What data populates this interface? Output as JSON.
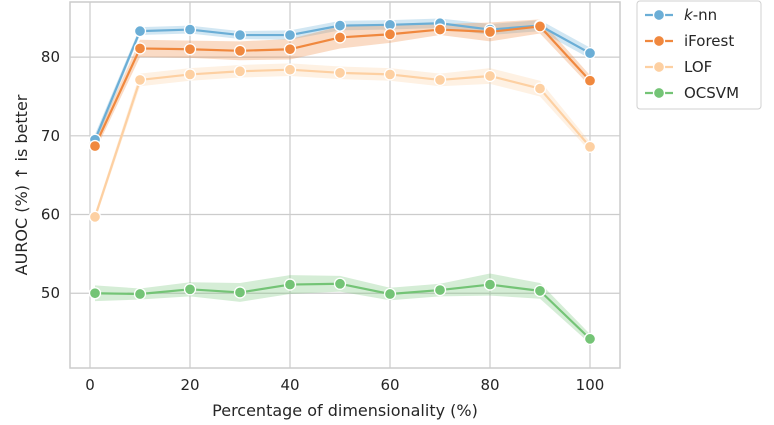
{
  "chart_data": {
    "type": "line",
    "xlabel": "Percentage of dimensionality (%)",
    "ylabel": "AUROC (%) ↑ is better",
    "xlim": [
      -4,
      106
    ],
    "ylim": [
      40.5,
      87
    ],
    "xticks": [
      0,
      20,
      40,
      60,
      80,
      100
    ],
    "yticks": [
      50,
      60,
      70,
      80
    ],
    "grid": true,
    "legend_position": "outside-top-right",
    "x": [
      1,
      10,
      20,
      30,
      40,
      50,
      60,
      70,
      80,
      90,
      100
    ],
    "series": [
      {
        "name_prefix": "k",
        "name_suffix": "-nn",
        "color": "#6baed6",
        "values": [
          69.5,
          83.3,
          83.5,
          82.8,
          82.8,
          84.0,
          84.1,
          84.3,
          83.5,
          84.0,
          80.5
        ],
        "lower": [
          68.8,
          82.8,
          83.0,
          82.3,
          82.2,
          83.4,
          83.5,
          83.7,
          82.8,
          83.3,
          79.8
        ],
        "upper": [
          70.2,
          83.8,
          84.0,
          83.3,
          83.4,
          84.6,
          84.7,
          84.9,
          84.2,
          84.7,
          81.2
        ]
      },
      {
        "name": "iForest",
        "color": "#f0883e",
        "values": [
          68.7,
          81.1,
          81.0,
          80.8,
          81.0,
          82.5,
          82.9,
          83.5,
          83.2,
          83.9,
          77.0
        ],
        "lower": [
          68.0,
          80.0,
          79.9,
          79.6,
          79.7,
          81.1,
          81.8,
          82.8,
          82.0,
          83.0,
          76.3
        ],
        "upper": [
          69.4,
          82.2,
          82.1,
          82.0,
          82.3,
          83.9,
          84.0,
          84.2,
          84.4,
          84.8,
          77.7
        ]
      },
      {
        "name": "LOF",
        "color": "#fdd0a2",
        "values": [
          59.7,
          77.1,
          77.8,
          78.2,
          78.4,
          78.0,
          77.8,
          77.1,
          77.6,
          76.0,
          68.6
        ],
        "lower": [
          59.2,
          76.3,
          77.0,
          77.4,
          77.6,
          77.2,
          77.0,
          76.3,
          76.6,
          75.0,
          68.0
        ],
        "upper": [
          60.2,
          77.9,
          78.6,
          79.0,
          79.2,
          78.8,
          78.6,
          77.9,
          78.6,
          77.0,
          69.2
        ]
      },
      {
        "name": "OCSVM",
        "color": "#74c476",
        "values": [
          50.0,
          49.9,
          50.5,
          50.1,
          51.1,
          51.2,
          49.9,
          50.4,
          51.1,
          50.3,
          44.2
        ],
        "lower": [
          49.0,
          49.2,
          49.6,
          48.9,
          49.9,
          50.2,
          49.1,
          49.6,
          49.7,
          49.3,
          43.6
        ],
        "upper": [
          51.0,
          50.6,
          51.4,
          51.3,
          52.3,
          52.2,
          50.7,
          51.2,
          52.5,
          51.3,
          44.8
        ]
      }
    ]
  }
}
